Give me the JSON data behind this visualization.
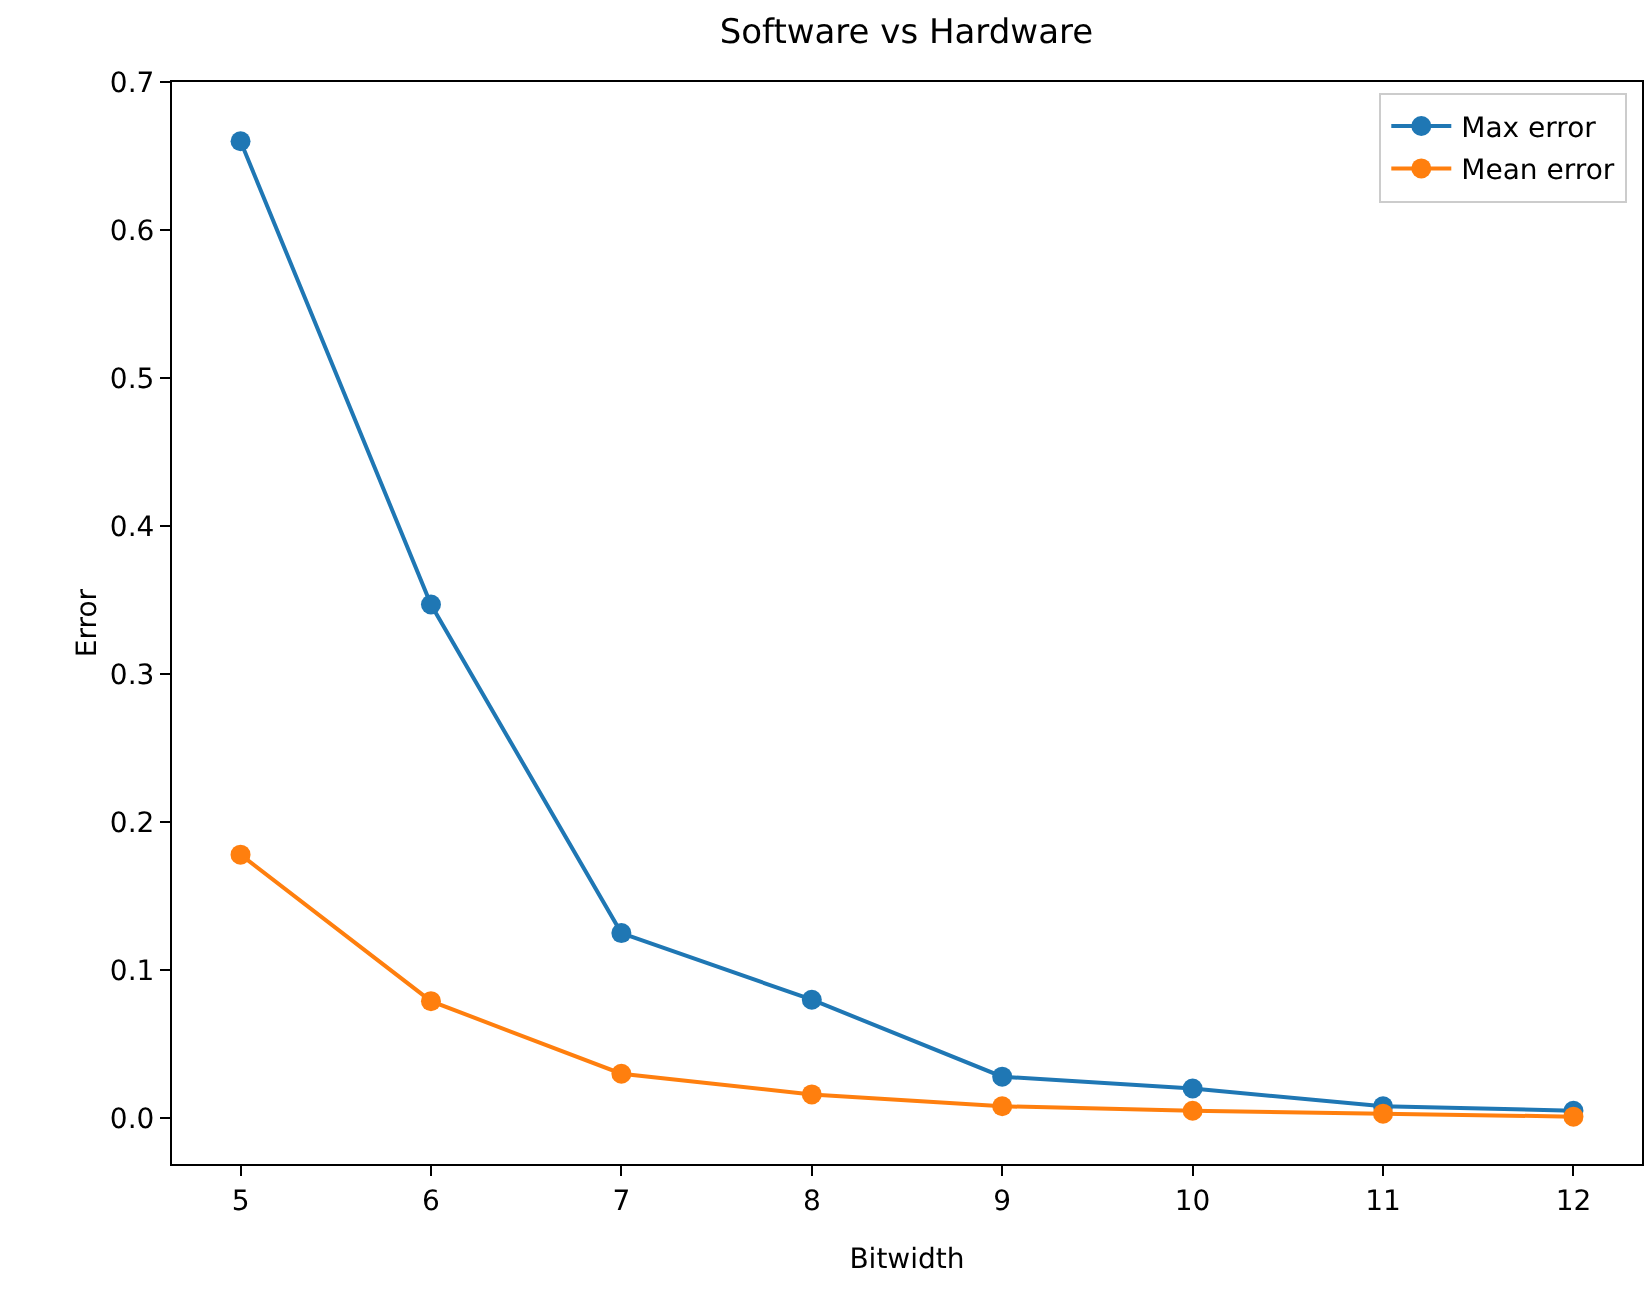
{
  "chart_data": {
    "type": "line",
    "title": "Software vs Hardware",
    "xlabel": "Bitwidth",
    "ylabel": "Error",
    "x": [
      5,
      6,
      7,
      8,
      9,
      10,
      11,
      12
    ],
    "series": [
      {
        "name": "Max error",
        "color": "#1f77b4",
        "values": [
          0.66,
          0.347,
          0.125,
          0.08,
          0.028,
          0.02,
          0.008,
          0.005
        ]
      },
      {
        "name": "Mean error",
        "color": "#ff7f0e",
        "values": [
          0.178,
          0.079,
          0.03,
          0.016,
          0.008,
          0.005,
          0.003,
          0.001
        ]
      }
    ],
    "xlim": [
      4.64,
      12.36
    ],
    "xticks": [
      5,
      6,
      7,
      8,
      9,
      10,
      11,
      12
    ],
    "ylim": [
      -0.031,
      0.7
    ],
    "yticks": [
      {
        "value": 0,
        "label": "0.0"
      },
      0.1,
      0.2,
      0.3,
      0.4,
      0.5,
      0.6,
      0.7
    ],
    "grid": false,
    "legend": "top right",
    "marker": "circle",
    "line_style": "solid"
  }
}
